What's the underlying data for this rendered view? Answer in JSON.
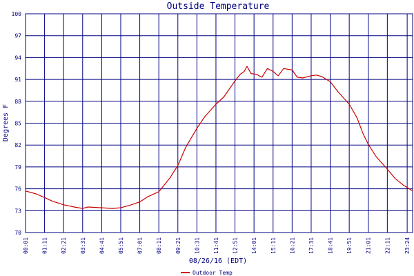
{
  "chart_data": {
    "type": "line",
    "title": "Outside Temperature",
    "xlabel": "08/26/16 (EDT)",
    "ylabel": "Degrees F",
    "ylim": [
      70,
      100
    ],
    "xlim": [
      "00:01",
      "23:44"
    ],
    "y_ticks": [
      "70",
      "73",
      "76",
      "79",
      "82",
      "85",
      "88",
      "91",
      "94",
      "97",
      "100"
    ],
    "x_ticks": [
      "00:01",
      "01:11",
      "02:21",
      "03:31",
      "04:41",
      "05:51",
      "07:01",
      "08:11",
      "09:21",
      "10:31",
      "11:41",
      "12:51",
      "14:01",
      "15:11",
      "16:21",
      "17:31",
      "18:41",
      "19:51",
      "21:01",
      "22:11",
      "23:24"
    ],
    "grid": true,
    "legend_position": "bottom-left",
    "colors": {
      "line": "#cc0000",
      "grid": "#000080",
      "text": "#000080"
    },
    "series": [
      {
        "name": "Outdoor Temp",
        "points": [
          [
            "00:01",
            75.7
          ],
          [
            "00:40",
            75.3
          ],
          [
            "01:11",
            74.8
          ],
          [
            "01:40",
            74.3
          ],
          [
            "02:21",
            73.8
          ],
          [
            "03:00",
            73.5
          ],
          [
            "03:31",
            73.3
          ],
          [
            "03:50",
            73.5
          ],
          [
            "04:41",
            73.4
          ],
          [
            "05:20",
            73.3
          ],
          [
            "05:51",
            73.4
          ],
          [
            "06:30",
            73.8
          ],
          [
            "07:01",
            74.2
          ],
          [
            "07:30",
            74.9
          ],
          [
            "08:11",
            75.6
          ],
          [
            "08:50",
            77.4
          ],
          [
            "09:21",
            79.2
          ],
          [
            "09:50",
            81.7
          ],
          [
            "10:31",
            84.3
          ],
          [
            "11:00",
            85.9
          ],
          [
            "11:41",
            87.6
          ],
          [
            "12:10",
            88.6
          ],
          [
            "12:51",
            90.8
          ],
          [
            "13:10",
            91.7
          ],
          [
            "13:25",
            92.1
          ],
          [
            "13:35",
            92.8
          ],
          [
            "13:50",
            91.8
          ],
          [
            "14:10",
            91.7
          ],
          [
            "14:30",
            91.3
          ],
          [
            "14:50",
            92.5
          ],
          [
            "15:11",
            92.1
          ],
          [
            "15:30",
            91.5
          ],
          [
            "15:50",
            92.5
          ],
          [
            "16:21",
            92.3
          ],
          [
            "16:40",
            91.3
          ],
          [
            "17:00",
            91.2
          ],
          [
            "17:31",
            91.5
          ],
          [
            "17:50",
            91.6
          ],
          [
            "18:10",
            91.4
          ],
          [
            "18:41",
            90.7
          ],
          [
            "19:10",
            89.3
          ],
          [
            "19:51",
            87.6
          ],
          [
            "20:20",
            85.7
          ],
          [
            "20:40",
            83.7
          ],
          [
            "21:01",
            82.1
          ],
          [
            "21:30",
            80.4
          ],
          [
            "22:11",
            78.7
          ],
          [
            "22:40",
            77.4
          ],
          [
            "23:10",
            76.5
          ],
          [
            "23:44",
            75.7
          ]
        ]
      }
    ]
  }
}
